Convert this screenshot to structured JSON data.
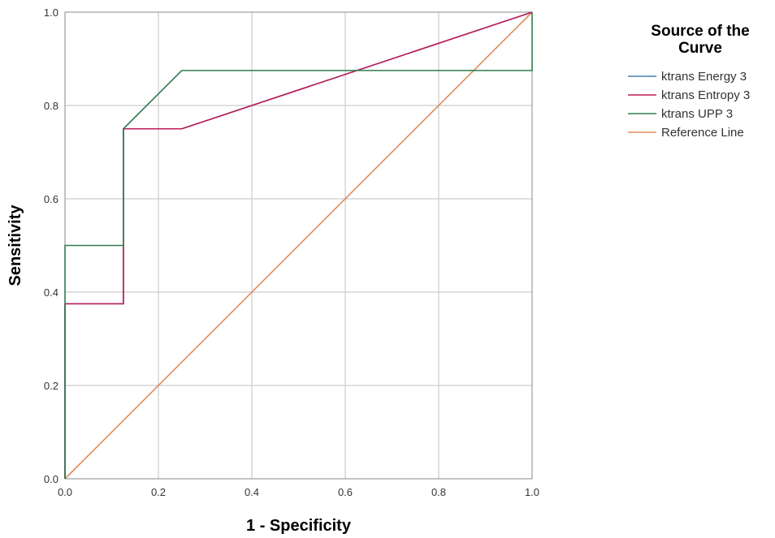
{
  "chart_data": {
    "type": "line",
    "xlabel": "1 - Specificity",
    "ylabel": "Sensitivity",
    "xlim": [
      0,
      1
    ],
    "ylim": [
      0,
      1
    ],
    "x_ticks": [
      "0.0",
      "0.2",
      "0.4",
      "0.6",
      "0.8",
      "1.0"
    ],
    "y_ticks": [
      "0.0",
      "0.2",
      "0.4",
      "0.6",
      "0.8",
      "1.0"
    ],
    "grid": true,
    "legend": {
      "title": "Source of the Curve",
      "title_lines": [
        "Source of the",
        "Curve"
      ],
      "position": "right"
    },
    "series": [
      {
        "name": "ktrans Energy 3",
        "color": "#4a7fa8",
        "points": [
          [
            0,
            0
          ],
          [
            0,
            0.375
          ],
          [
            0.125,
            0.375
          ],
          [
            0.125,
            0.75
          ],
          [
            0.25,
            0.75
          ],
          [
            1,
            1
          ]
        ]
      },
      {
        "name": "ktrans Entropy 3",
        "color": "#c0185a",
        "points": [
          [
            0,
            0
          ],
          [
            0,
            0.375
          ],
          [
            0.125,
            0.375
          ],
          [
            0.125,
            0.75
          ],
          [
            0.25,
            0.75
          ],
          [
            1,
            1
          ]
        ]
      },
      {
        "name": "ktrans UPP 3",
        "color": "#2e7d4f",
        "points": [
          [
            0,
            0
          ],
          [
            0,
            0.5
          ],
          [
            0.125,
            0.5
          ],
          [
            0.125,
            0.75
          ],
          [
            0.25,
            0.875
          ],
          [
            1,
            0.875
          ],
          [
            1,
            1
          ]
        ]
      },
      {
        "name": "Reference Line",
        "color": "#e08a5a",
        "points": [
          [
            0,
            0
          ],
          [
            1,
            1
          ]
        ]
      }
    ]
  }
}
